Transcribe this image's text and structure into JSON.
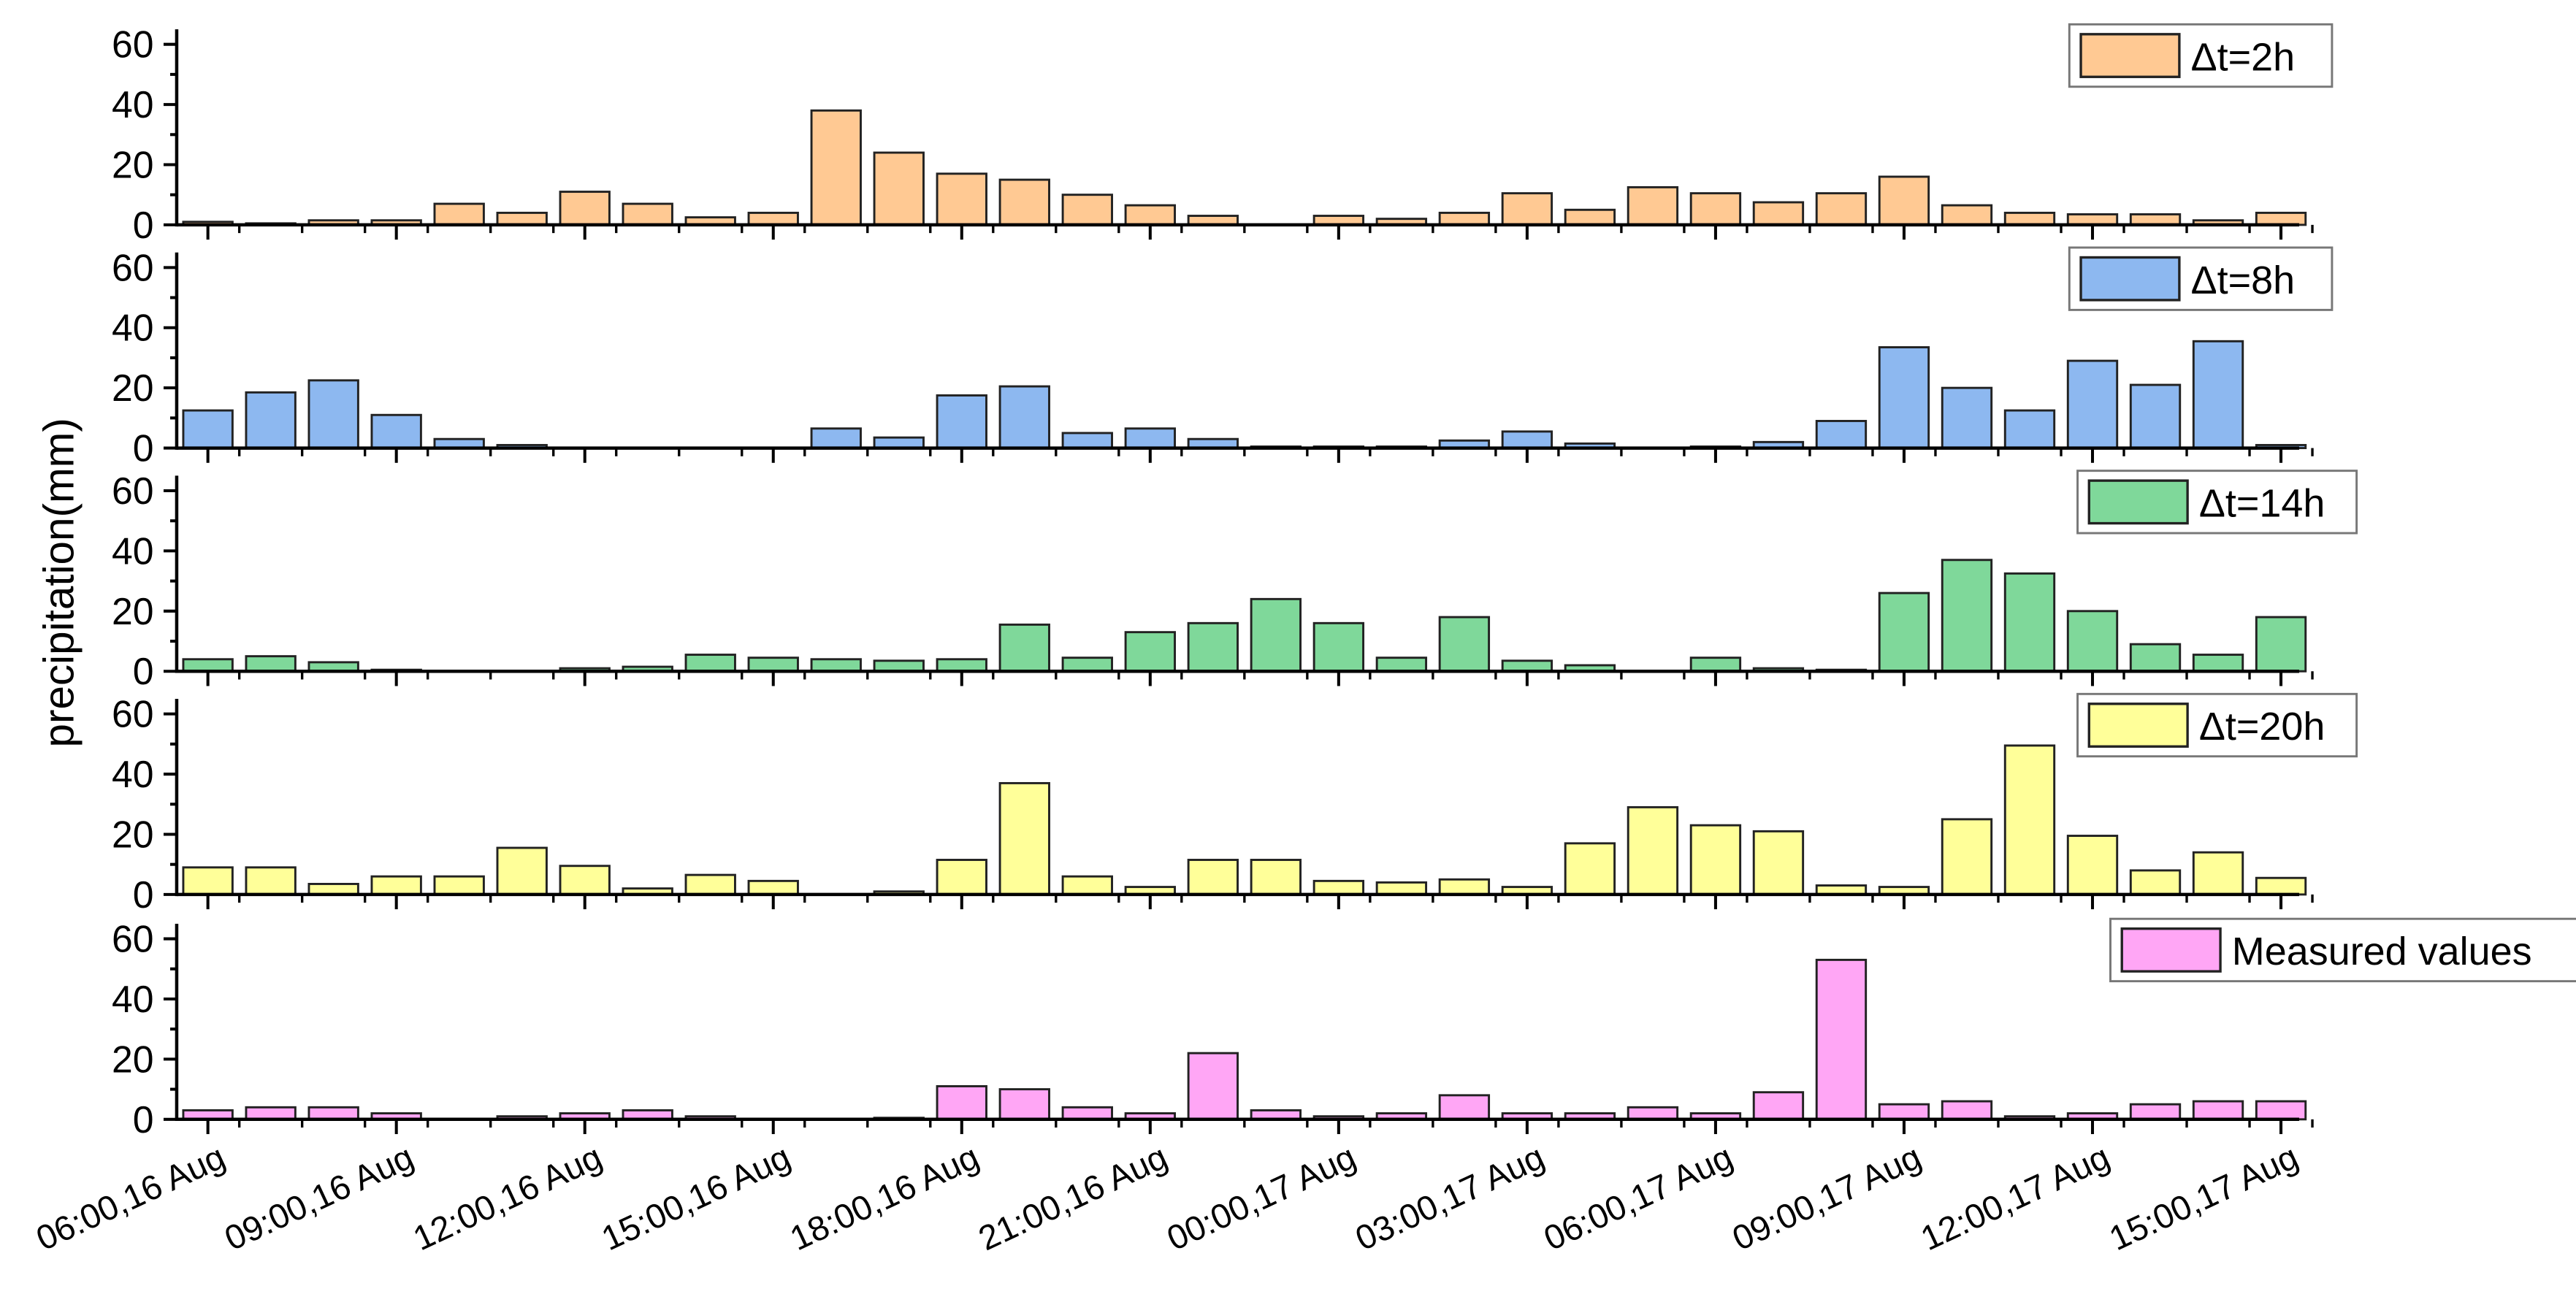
{
  "chart_data": {
    "type": "bar",
    "ylabel": "precipitation(mm)",
    "xlabel": "",
    "ylim": [
      0,
      65
    ],
    "yticks": [
      "0",
      "20",
      "40",
      "60"
    ],
    "xtick_labels": [
      "06:00,16 Aug",
      "09:00,16 Aug",
      "12:00,16 Aug",
      "15:00,16 Aug",
      "18:00,16 Aug",
      "21:00,16 Aug",
      "00:00,17 Aug",
      "03:00,17 Aug",
      "06:00,17 Aug",
      "09:00,17 Aug",
      "12:00,17 Aug",
      "15:00,17 Aug"
    ],
    "hours_per_bar": 1,
    "legend_placement": "top-right",
    "series": [
      {
        "name": "Δt=2h",
        "color": "#FFC993",
        "values": [
          1,
          0.5,
          1.5,
          1.5,
          7,
          4,
          11,
          7,
          2.5,
          4,
          38,
          24,
          17,
          15,
          10,
          6.5,
          3,
          0,
          3,
          2,
          4,
          10.5,
          5,
          12.5,
          10.5,
          7.5,
          10.5,
          16,
          6.5,
          4,
          3.5,
          3.5,
          1.5,
          4
        ]
      },
      {
        "name": "Δt=8h",
        "color": "#8DB8F0",
        "values": [
          12.5,
          18.5,
          22.5,
          11,
          3,
          1,
          0,
          0,
          0,
          0,
          6.5,
          3.5,
          17.5,
          20.5,
          5,
          6.5,
          3,
          0.5,
          0.5,
          0.5,
          2.5,
          5.5,
          1.5,
          0,
          0.5,
          2,
          9,
          33.5,
          20,
          12.5,
          29,
          21,
          35.5,
          1
        ]
      },
      {
        "name": "Δt=14h",
        "color": "#7FD89A",
        "values": [
          4,
          5,
          3,
          0.5,
          0,
          0,
          1,
          1.5,
          5.5,
          4.5,
          4,
          3.5,
          4,
          15.5,
          4.5,
          13,
          16,
          24,
          16,
          4.5,
          18,
          3.5,
          2,
          0,
          4.5,
          1,
          0.5,
          26,
          37,
          32.5,
          20,
          9,
          5.5,
          18
        ]
      },
      {
        "name": "Δt=20h",
        "color": "#FFFF99",
        "values": [
          9,
          9,
          3.5,
          6,
          6,
          15.5,
          9.5,
          2,
          6.5,
          4.5,
          0,
          1,
          11.5,
          37,
          6,
          2.5,
          11.5,
          11.5,
          4.5,
          4,
          5,
          2.5,
          17,
          29,
          23,
          21,
          3,
          2.5,
          25,
          49.5,
          19.5,
          8,
          14,
          5.5
        ]
      },
      {
        "name": "Measured values",
        "color": "#FFA6F5",
        "values": [
          3,
          4,
          4,
          2,
          0,
          1,
          2,
          3,
          1,
          0,
          0,
          0.5,
          11,
          10,
          4,
          2,
          22,
          3,
          1,
          2,
          8,
          2,
          2,
          4,
          2,
          9,
          53,
          5,
          6,
          1,
          2,
          5,
          6,
          6
        ]
      }
    ]
  }
}
